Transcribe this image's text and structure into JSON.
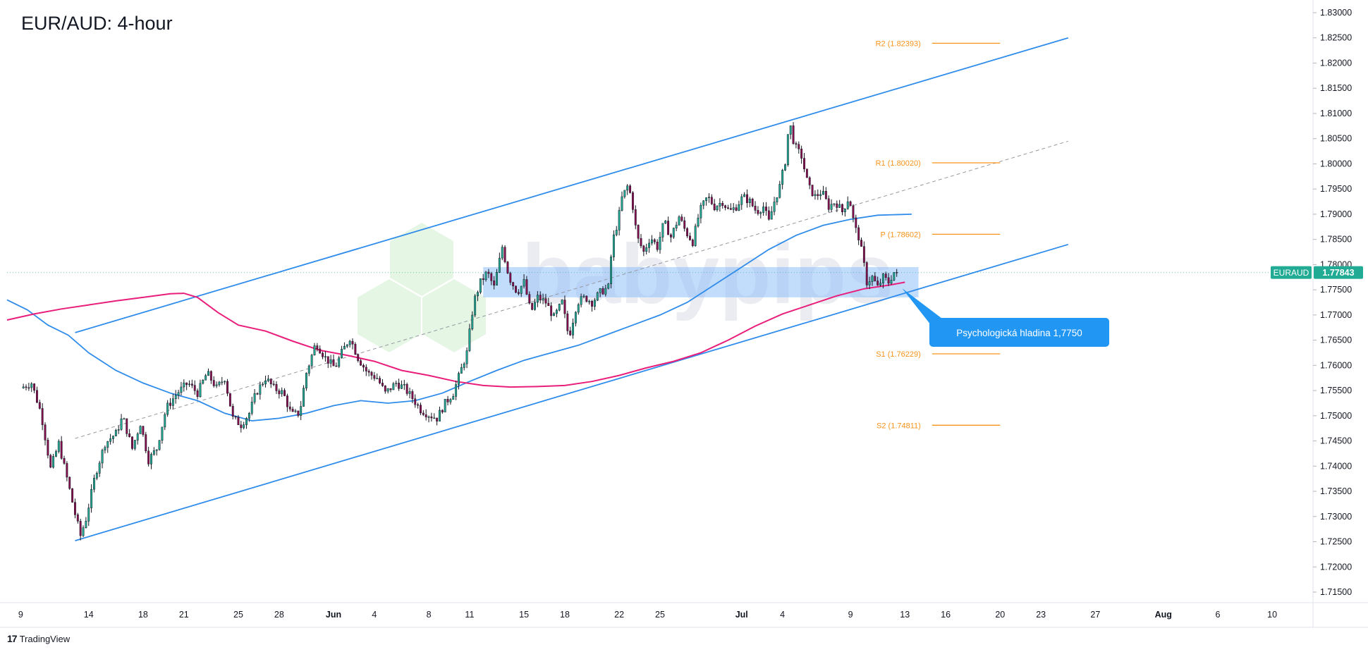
{
  "chart_data": {
    "type": "candlestick",
    "title": "EUR/AUD: 4-hour",
    "symbol_badge": {
      "symbol": "EURAUD",
      "price": "1.77843",
      "color": "#22ab94"
    },
    "ylim": [
      1.713,
      1.8305
    ],
    "y_ticks": [
      "1.83000",
      "1.82500",
      "1.82000",
      "1.81500",
      "1.81000",
      "1.80500",
      "1.80000",
      "1.79500",
      "1.79000",
      "1.78500",
      "1.78000",
      "1.77500",
      "1.77000",
      "1.76500",
      "1.76000",
      "1.75500",
      "1.75000",
      "1.74500",
      "1.74000",
      "1.73500",
      "1.73000",
      "1.72500",
      "1.72000",
      "1.71500"
    ],
    "x_ticks": [
      {
        "label": "9",
        "day": 9,
        "bold": false
      },
      {
        "label": "14",
        "day": 14,
        "bold": false
      },
      {
        "label": "18",
        "day": 18,
        "bold": false
      },
      {
        "label": "21",
        "day": 21,
        "bold": false
      },
      {
        "label": "25",
        "day": 25,
        "bold": false
      },
      {
        "label": "28",
        "day": 28,
        "bold": false
      },
      {
        "label": "Jun",
        "day": 32,
        "bold": true
      },
      {
        "label": "4",
        "day": 35,
        "bold": false
      },
      {
        "label": "8",
        "day": 39,
        "bold": false
      },
      {
        "label": "11",
        "day": 42,
        "bold": false
      },
      {
        "label": "15",
        "day": 46,
        "bold": false
      },
      {
        "label": "18",
        "day": 49,
        "bold": false
      },
      {
        "label": "22",
        "day": 53,
        "bold": false
      },
      {
        "label": "25",
        "day": 56,
        "bold": false
      },
      {
        "label": "Jul",
        "day": 62,
        "bold": true
      },
      {
        "label": "4",
        "day": 65,
        "bold": false
      },
      {
        "label": "9",
        "day": 70,
        "bold": false
      },
      {
        "label": "13",
        "day": 74,
        "bold": false
      },
      {
        "label": "16",
        "day": 77,
        "bold": false
      },
      {
        "label": "20",
        "day": 81,
        "bold": false
      },
      {
        "label": "23",
        "day": 84,
        "bold": false
      },
      {
        "label": "27",
        "day": 88,
        "bold": false
      },
      {
        "label": "Aug",
        "day": 93,
        "bold": true
      },
      {
        "label": "6",
        "day": 97,
        "bold": false
      },
      {
        "label": "10",
        "day": 101,
        "bold": false
      }
    ],
    "price_path": [
      [
        9.0,
        1.7555
      ],
      [
        9.8,
        1.7565
      ],
      [
        10.5,
        1.7505
      ],
      [
        11.2,
        1.7395
      ],
      [
        11.8,
        1.7445
      ],
      [
        12.5,
        1.7365
      ],
      [
        13.0,
        1.7305
      ],
      [
        13.4,
        1.7262
      ],
      [
        13.8,
        1.7295
      ],
      [
        14.5,
        1.7385
      ],
      [
        15.2,
        1.7445
      ],
      [
        16.0,
        1.7465
      ],
      [
        16.5,
        1.7498
      ],
      [
        17.2,
        1.7435
      ],
      [
        17.8,
        1.7485
      ],
      [
        18.4,
        1.7412
      ],
      [
        19.0,
        1.7435
      ],
      [
        19.7,
        1.7515
      ],
      [
        20.5,
        1.7545
      ],
      [
        21.3,
        1.7565
      ],
      [
        22.0,
        1.7545
      ],
      [
        22.7,
        1.7585
      ],
      [
        23.4,
        1.7555
      ],
      [
        24.0,
        1.7575
      ],
      [
        24.6,
        1.7495
      ],
      [
        25.2,
        1.7482
      ],
      [
        25.8,
        1.7505
      ],
      [
        26.3,
        1.7545
      ],
      [
        27.0,
        1.7575
      ],
      [
        27.6,
        1.7555
      ],
      [
        28.3,
        1.7545
      ],
      [
        28.9,
        1.7502
      ],
      [
        29.5,
        1.7505
      ],
      [
        30.0,
        1.7585
      ],
      [
        30.7,
        1.7645
      ],
      [
        31.4,
        1.7615
      ],
      [
        32.1,
        1.7595
      ],
      [
        32.6,
        1.7625
      ],
      [
        33.2,
        1.7655
      ],
      [
        33.8,
        1.7615
      ],
      [
        34.5,
        1.7585
      ],
      [
        35.2,
        1.7575
      ],
      [
        35.8,
        1.7545
      ],
      [
        36.6,
        1.7565
      ],
      [
        37.2,
        1.7555
      ],
      [
        37.8,
        1.7535
      ],
      [
        38.4,
        1.7512
      ],
      [
        39.0,
        1.7502
      ],
      [
        39.6,
        1.7495
      ],
      [
        40.2,
        1.7525
      ],
      [
        40.8,
        1.7545
      ],
      [
        41.3,
        1.7585
      ],
      [
        41.8,
        1.7625
      ],
      [
        42.3,
        1.7725
      ],
      [
        42.8,
        1.7765
      ],
      [
        43.3,
        1.7785
      ],
      [
        43.8,
        1.7755
      ],
      [
        44.4,
        1.7835
      ],
      [
        44.9,
        1.7775
      ],
      [
        45.5,
        1.7745
      ],
      [
        46.0,
        1.7765
      ],
      [
        46.5,
        1.7705
      ],
      [
        47.0,
        1.7735
      ],
      [
        47.6,
        1.7725
      ],
      [
        48.2,
        1.7695
      ],
      [
        48.8,
        1.7725
      ],
      [
        49.3,
        1.7655
      ],
      [
        49.9,
        1.7725
      ],
      [
        50.5,
        1.7735
      ],
      [
        51.0,
        1.7725
      ],
      [
        51.6,
        1.7745
      ],
      [
        52.2,
        1.7755
      ],
      [
        52.5,
        1.7845
      ],
      [
        52.9,
        1.7885
      ],
      [
        53.2,
        1.7932
      ],
      [
        53.6,
        1.7955
      ],
      [
        53.9,
        1.7935
      ],
      [
        54.3,
        1.7855
      ],
      [
        54.8,
        1.7825
      ],
      [
        55.3,
        1.7855
      ],
      [
        55.8,
        1.7835
      ],
      [
        56.3,
        1.7885
      ],
      [
        56.8,
        1.7855
      ],
      [
        57.4,
        1.7895
      ],
      [
        57.9,
        1.7865
      ],
      [
        58.4,
        1.7845
      ],
      [
        58.9,
        1.7905
      ],
      [
        59.5,
        1.7935
      ],
      [
        60.0,
        1.7915
      ],
      [
        60.6,
        1.7925
      ],
      [
        61.1,
        1.7905
      ],
      [
        61.6,
        1.7915
      ],
      [
        62.1,
        1.7935
      ],
      [
        62.6,
        1.7925
      ],
      [
        63.1,
        1.7905
      ],
      [
        63.6,
        1.7915
      ],
      [
        64.0,
        1.7885
      ],
      [
        64.4,
        1.7925
      ],
      [
        64.8,
        1.7955
      ],
      [
        65.2,
        1.8005
      ],
      [
        65.5,
        1.8085
      ],
      [
        65.9,
        1.8035
      ],
      [
        66.4,
        1.8015
      ],
      [
        66.9,
        1.7955
      ],
      [
        67.4,
        1.7935
      ],
      [
        67.9,
        1.7945
      ],
      [
        68.4,
        1.7915
      ],
      [
        68.9,
        1.7925
      ],
      [
        69.4,
        1.7905
      ],
      [
        69.9,
        1.7935
      ],
      [
        70.3,
        1.7875
      ],
      [
        70.6,
        1.7855
      ],
      [
        70.9,
        1.7815
      ],
      [
        71.2,
        1.7765
      ],
      [
        71.6,
        1.7775
      ],
      [
        72.0,
        1.7755
      ],
      [
        72.4,
        1.7775
      ],
      [
        72.8,
        1.7765
      ],
      [
        73.2,
        1.7785
      ],
      [
        73.5,
        1.7775
      ]
    ],
    "ma_blue": [
      [
        8.0,
        1.773
      ],
      [
        9.5,
        1.771
      ],
      [
        11.0,
        1.768
      ],
      [
        12.5,
        1.766
      ],
      [
        14.0,
        1.7625
      ],
      [
        16.0,
        1.759
      ],
      [
        18.0,
        1.7565
      ],
      [
        20.0,
        1.7545
      ],
      [
        22.0,
        1.753
      ],
      [
        24.0,
        1.7505
      ],
      [
        26.0,
        1.749
      ],
      [
        28.0,
        1.7495
      ],
      [
        30.0,
        1.7505
      ],
      [
        32.0,
        1.752
      ],
      [
        34.0,
        1.753
      ],
      [
        36.0,
        1.7525
      ],
      [
        38.0,
        1.753
      ],
      [
        40.0,
        1.7545
      ],
      [
        42.0,
        1.7568
      ],
      [
        44.0,
        1.759
      ],
      [
        46.0,
        1.761
      ],
      [
        48.0,
        1.7625
      ],
      [
        50.0,
        1.764
      ],
      [
        52.0,
        1.766
      ],
      [
        54.0,
        1.768
      ],
      [
        56.0,
        1.77
      ],
      [
        58.0,
        1.7725
      ],
      [
        60.0,
        1.776
      ],
      [
        62.0,
        1.7795
      ],
      [
        64.0,
        1.783
      ],
      [
        66.0,
        1.7858
      ],
      [
        68.0,
        1.7878
      ],
      [
        70.0,
        1.789
      ],
      [
        72.0,
        1.7898
      ],
      [
        74.5,
        1.79
      ]
    ],
    "ma_magenta": [
      [
        8.0,
        1.769
      ],
      [
        10.0,
        1.7702
      ],
      [
        12.0,
        1.7712
      ],
      [
        14.0,
        1.772
      ],
      [
        16.0,
        1.7728
      ],
      [
        18.0,
        1.7735
      ],
      [
        20.0,
        1.7742
      ],
      [
        21.0,
        1.7743
      ],
      [
        22.0,
        1.7735
      ],
      [
        23.5,
        1.7705
      ],
      [
        25.0,
        1.768
      ],
      [
        27.0,
        1.7668
      ],
      [
        29.0,
        1.7648
      ],
      [
        31.0,
        1.763
      ],
      [
        33.0,
        1.762
      ],
      [
        35.0,
        1.7608
      ],
      [
        37.0,
        1.759
      ],
      [
        39.0,
        1.758
      ],
      [
        41.0,
        1.7568
      ],
      [
        43.0,
        1.756
      ],
      [
        45.0,
        1.7557
      ],
      [
        47.0,
        1.7558
      ],
      [
        49.0,
        1.756
      ],
      [
        51.0,
        1.7568
      ],
      [
        53.0,
        1.758
      ],
      [
        55.0,
        1.7595
      ],
      [
        57.0,
        1.7608
      ],
      [
        59.0,
        1.7625
      ],
      [
        61.0,
        1.765
      ],
      [
        63.0,
        1.7678
      ],
      [
        65.0,
        1.7702
      ],
      [
        67.0,
        1.772
      ],
      [
        69.0,
        1.7738
      ],
      [
        71.0,
        1.7752
      ],
      [
        73.0,
        1.776
      ],
      [
        74.0,
        1.7765
      ]
    ],
    "channel_upper": [
      [
        13.0,
        1.7665
      ],
      [
        86.0,
        1.825
      ]
    ],
    "channel_lower": [
      [
        13.0,
        1.7252
      ],
      [
        86.0,
        1.784
      ]
    ],
    "channel_mid": [
      [
        13.0,
        1.7455
      ],
      [
        86.0,
        1.8045
      ]
    ],
    "zone": {
      "x0": 43.0,
      "x1": 75.0,
      "y0": 1.7735,
      "y1": 1.7795
    },
    "pivots": [
      {
        "label": "R2 (1.82393)",
        "value": 1.82393
      },
      {
        "label": "R1 (1.80020)",
        "value": 1.8002
      },
      {
        "label": "P (1.78602)",
        "value": 1.78602
      },
      {
        "label": "S1 (1.76229)",
        "value": 1.76229
      },
      {
        "label": "S2 (1.74811)",
        "value": 1.74811
      }
    ],
    "pivot_x": [
      76.0,
      81.0
    ],
    "annotation": {
      "text": "Psychologická hladina 1,7750",
      "value": 1.775
    },
    "watermark": "babypips"
  },
  "footer": {
    "brand": "TradingView"
  }
}
